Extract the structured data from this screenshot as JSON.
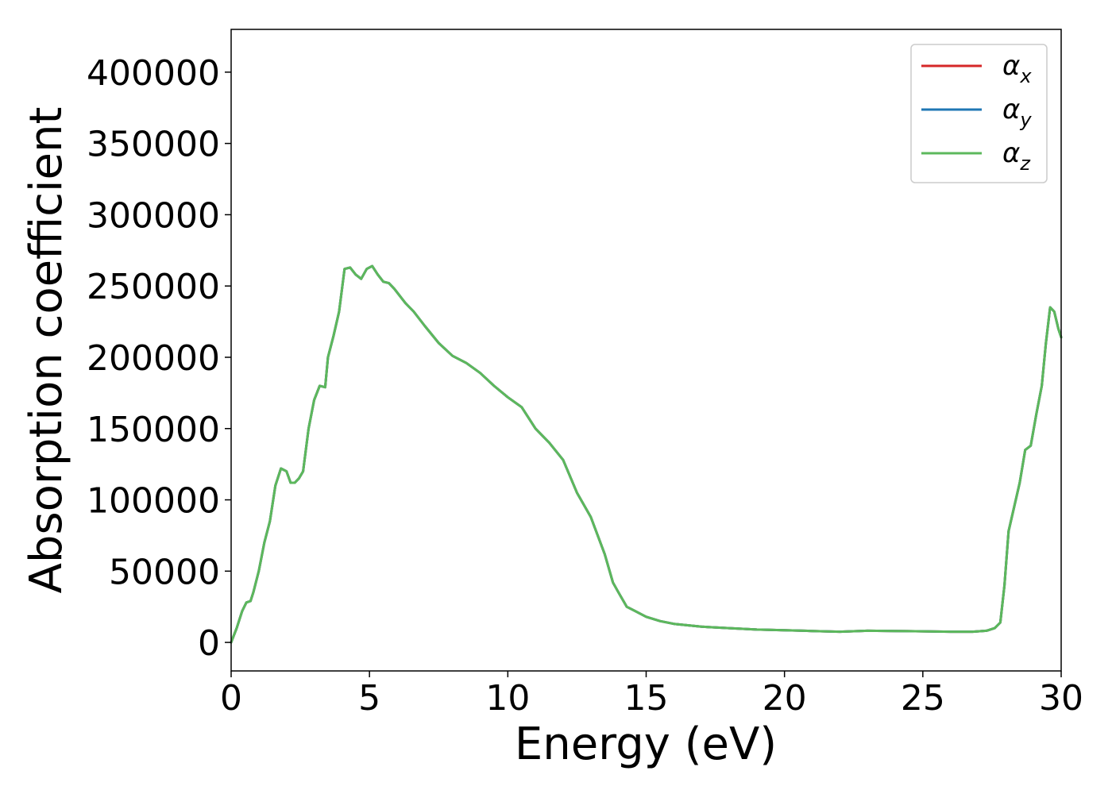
{
  "chart_data": {
    "type": "line",
    "title": "",
    "xlabel": "Energy (eV)",
    "ylabel": "Absorption coefficient",
    "xlim": [
      0,
      30
    ],
    "ylim": [
      -20000,
      430000
    ],
    "x_ticks": [
      0,
      5,
      10,
      15,
      20,
      25,
      30
    ],
    "x_tick_labels": [
      "0",
      "5",
      "10",
      "15",
      "20",
      "25",
      "30"
    ],
    "y_ticks": [
      0,
      50000,
      100000,
      150000,
      200000,
      250000,
      300000,
      350000,
      400000
    ],
    "y_tick_labels": [
      "0",
      "50000",
      "100000",
      "150000",
      "200000",
      "250000",
      "300000",
      "350000",
      "400000"
    ],
    "grid": false,
    "legend_position": "top-right",
    "x": [
      0,
      0.2,
      0.4,
      0.55,
      0.7,
      0.8,
      1.0,
      1.2,
      1.4,
      1.6,
      1.8,
      2.0,
      2.15,
      2.3,
      2.45,
      2.6,
      2.8,
      3.0,
      3.2,
      3.4,
      3.5,
      3.7,
      3.9,
      4.1,
      4.3,
      4.5,
      4.7,
      4.9,
      5.1,
      5.3,
      5.5,
      5.7,
      5.9,
      6.1,
      6.3,
      6.6,
      7.0,
      7.5,
      8.0,
      8.5,
      9.0,
      9.5,
      10.0,
      10.5,
      11.0,
      11.5,
      12.0,
      12.5,
      13.0,
      13.5,
      13.8,
      14.0,
      14.3,
      14.6,
      15.0,
      15.5,
      16.0,
      17.0,
      18.0,
      19.0,
      20.0,
      21.0,
      22.0,
      23.0,
      24.0,
      25.0,
      26.0,
      26.8,
      27.3,
      27.6,
      27.8,
      27.95,
      28.1,
      28.3,
      28.5,
      28.7,
      28.9,
      29.1,
      29.3,
      29.45,
      29.6,
      29.75,
      29.9,
      30.0
    ],
    "series": [
      {
        "name": "α_x",
        "legend_main": "α",
        "legend_sub": "x",
        "color": "#d62728",
        "values": [
          0,
          10000,
          22000,
          28000,
          29000,
          35000,
          50000,
          70000,
          85000,
          110000,
          122000,
          120000,
          112000,
          112000,
          115000,
          120000,
          150000,
          170000,
          180000,
          179000,
          200000,
          215000,
          232000,
          262000,
          263000,
          258000,
          255000,
          262000,
          264000,
          258000,
          253000,
          252000,
          248000,
          243000,
          238000,
          232000,
          222000,
          210000,
          201000,
          196000,
          189000,
          180000,
          172000,
          165000,
          150000,
          140000,
          128000,
          105000,
          88000,
          62000,
          42000,
          35000,
          25000,
          22000,
          18000,
          15000,
          13000,
          11000,
          10000,
          9000,
          8500,
          8000,
          7500,
          8200,
          8000,
          7800,
          7500,
          7500,
          8200,
          10000,
          14000,
          40000,
          78000,
          95000,
          112000,
          135000,
          138000,
          160000,
          180000,
          210000,
          235000,
          232000,
          220000,
          214000
        ]
      },
      {
        "name": "α_y",
        "legend_main": "α",
        "legend_sub": "y",
        "color": "#1f77b4",
        "values": [
          0,
          10000,
          22000,
          28000,
          29000,
          35000,
          50000,
          70000,
          85000,
          110000,
          122000,
          120000,
          112000,
          112000,
          115000,
          120000,
          150000,
          170000,
          180000,
          179000,
          200000,
          215000,
          232000,
          262000,
          263000,
          258000,
          255000,
          262000,
          264000,
          258000,
          253000,
          252000,
          248000,
          243000,
          238000,
          232000,
          222000,
          210000,
          201000,
          196000,
          189000,
          180000,
          172000,
          165000,
          150000,
          140000,
          128000,
          105000,
          88000,
          62000,
          42000,
          35000,
          25000,
          22000,
          18000,
          15000,
          13000,
          11000,
          10000,
          9000,
          8500,
          8000,
          7500,
          8200,
          8000,
          7800,
          7500,
          7500,
          8200,
          10000,
          14000,
          40000,
          78000,
          95000,
          112000,
          135000,
          138000,
          160000,
          180000,
          210000,
          235000,
          232000,
          220000,
          214000
        ]
      },
      {
        "name": "α_z",
        "legend_main": "α",
        "legend_sub": "z",
        "color": "#5cb85c",
        "values": [
          0,
          10000,
          22000,
          28000,
          29000,
          35000,
          50000,
          70000,
          85000,
          110000,
          122000,
          120000,
          112000,
          112000,
          115000,
          120000,
          150000,
          170000,
          180000,
          179000,
          200000,
          215000,
          232000,
          262000,
          263000,
          258000,
          255000,
          262000,
          264000,
          258000,
          253000,
          252000,
          248000,
          243000,
          238000,
          232000,
          222000,
          210000,
          201000,
          196000,
          189000,
          180000,
          172000,
          165000,
          150000,
          140000,
          128000,
          105000,
          88000,
          62000,
          42000,
          35000,
          25000,
          22000,
          18000,
          15000,
          13000,
          11000,
          10000,
          9000,
          8500,
          8000,
          7500,
          8200,
          8000,
          7800,
          7500,
          7500,
          8200,
          10000,
          14000,
          40000,
          78000,
          95000,
          112000,
          135000,
          138000,
          160000,
          180000,
          210000,
          235000,
          232000,
          220000,
          214000
        ]
      }
    ]
  }
}
